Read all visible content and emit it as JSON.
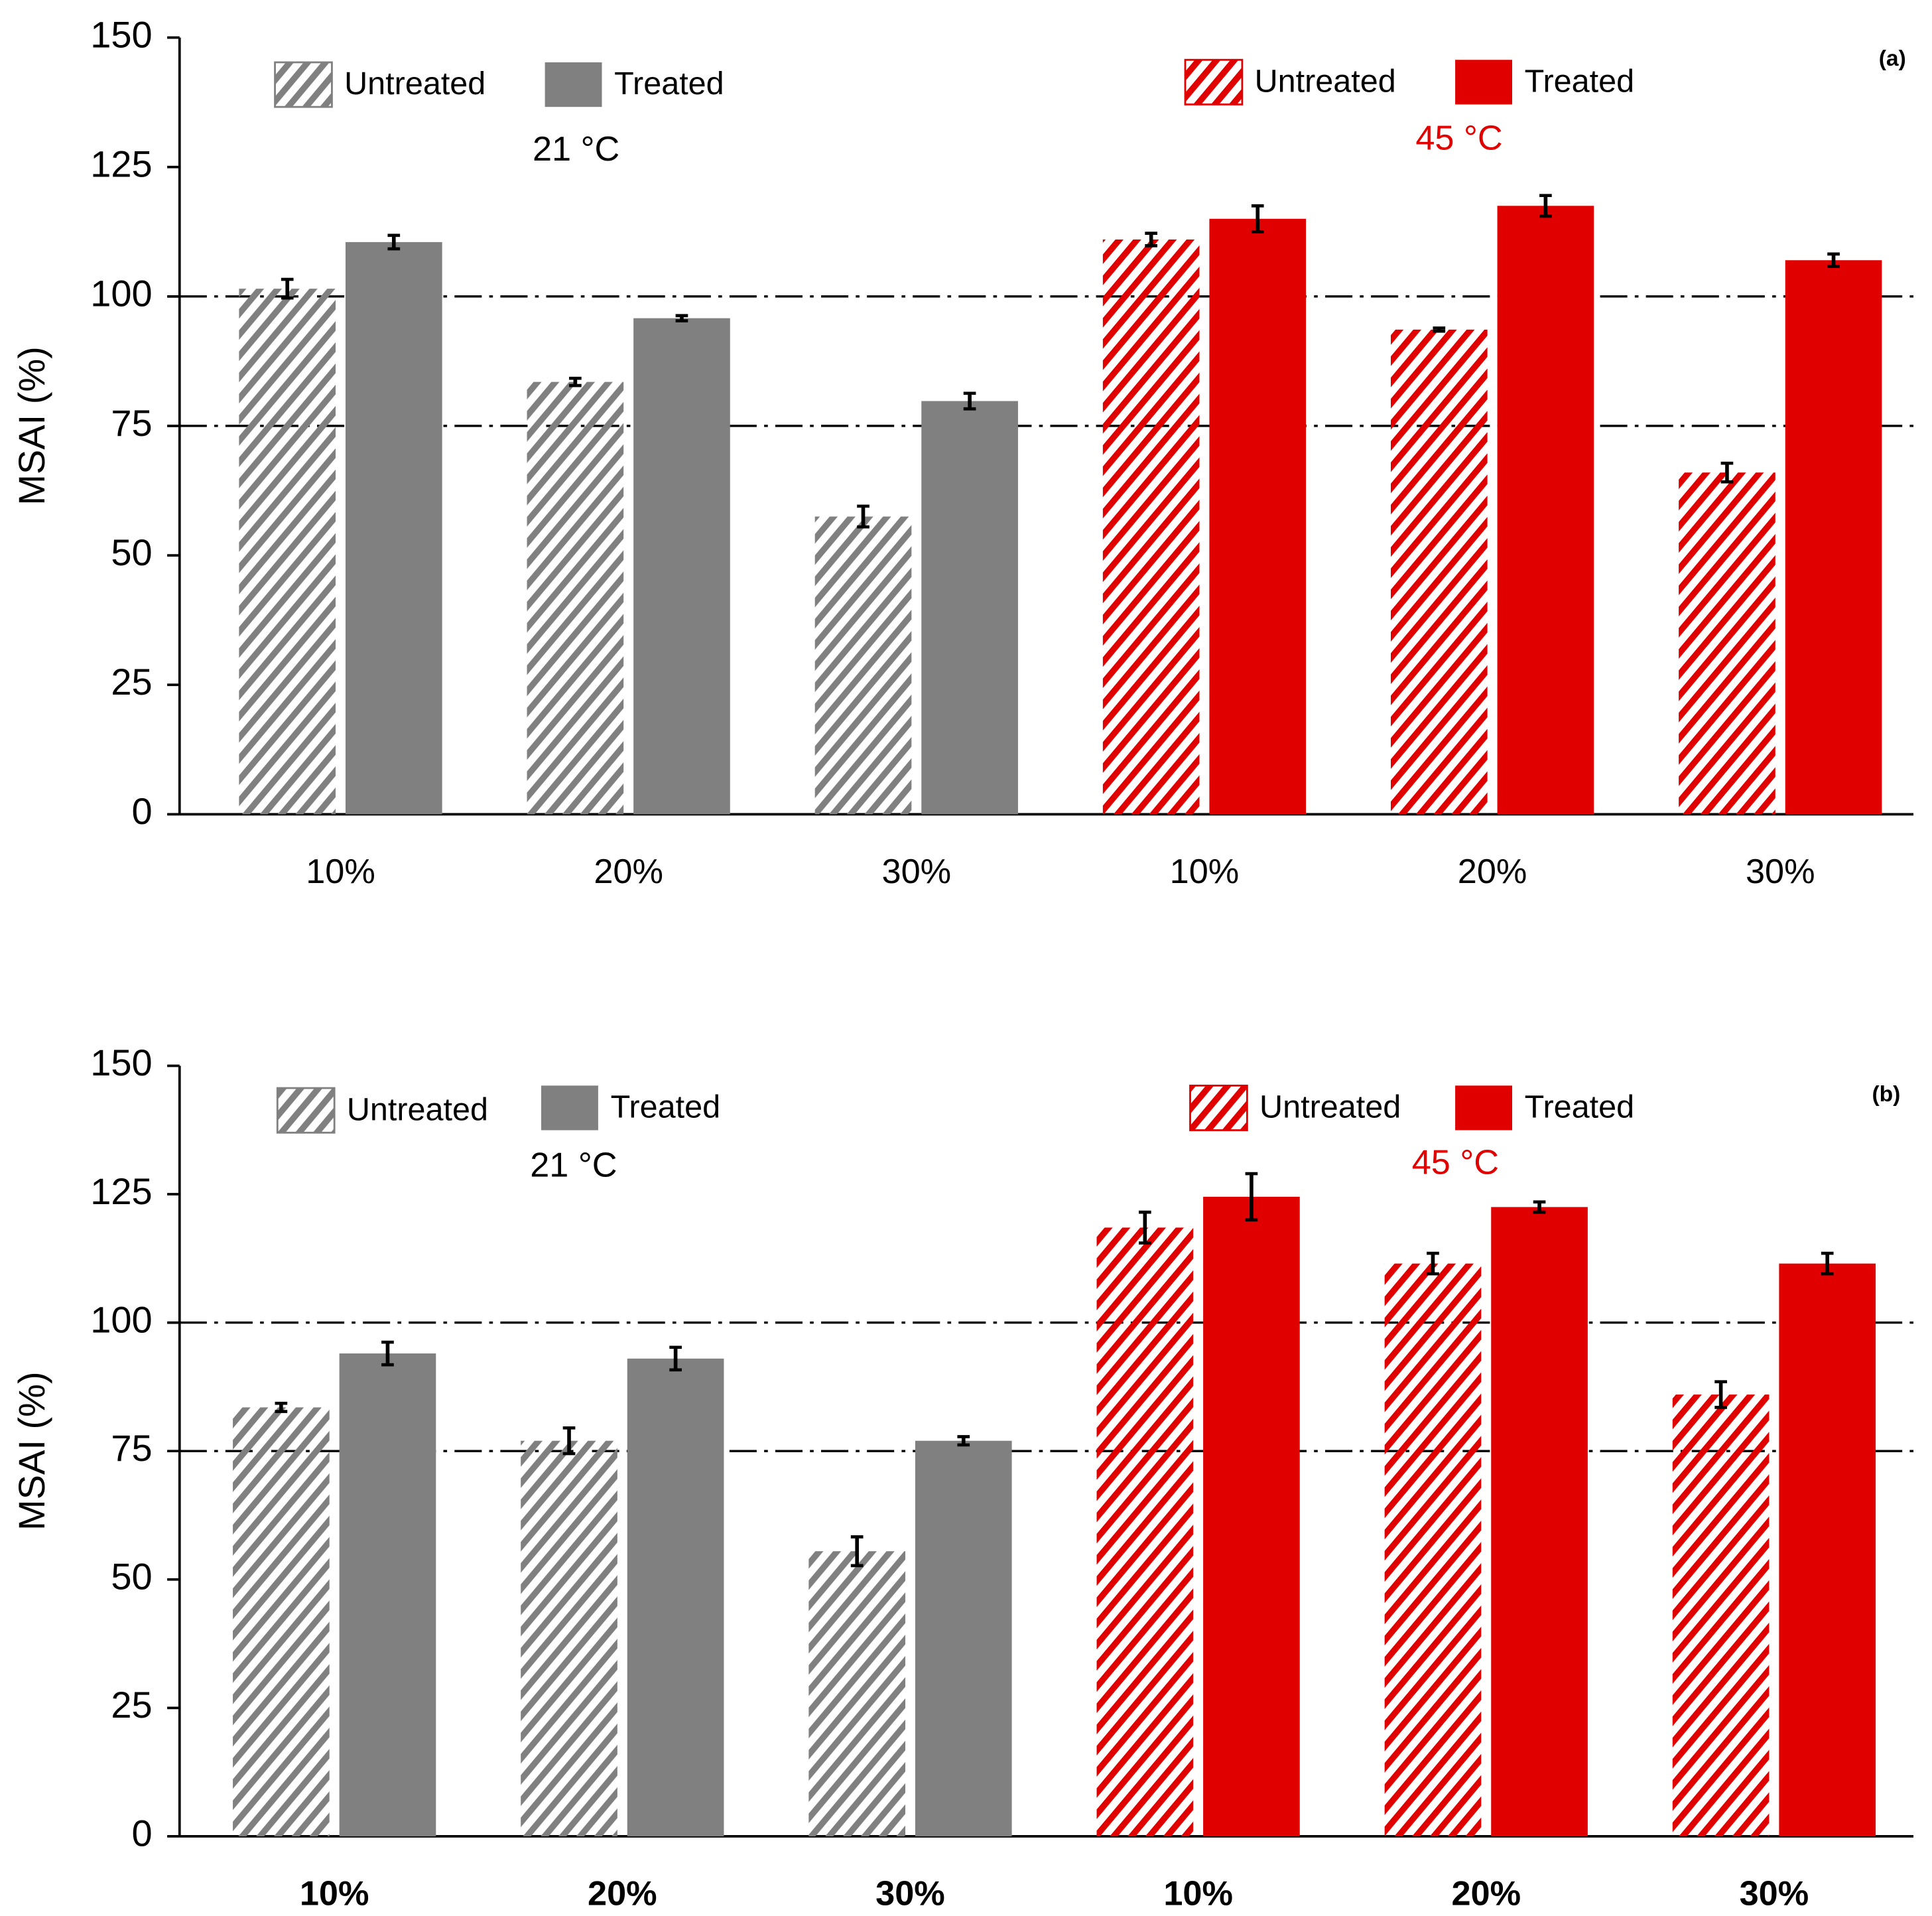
{
  "chart_data": [
    {
      "type": "bar",
      "label": "(a)",
      "ylabel": "MSAI (%)",
      "ylim": [
        0,
        150
      ],
      "yticks": [
        0,
        25,
        50,
        75,
        100,
        125,
        150
      ],
      "reference_lines": [
        100,
        75
      ],
      "groups": [
        {
          "label": "21 °C",
          "label_color": "#000000",
          "categories": [
            "10%",
            "20%",
            "30%"
          ],
          "series": [
            {
              "name": "Untreated",
              "color": "#808080",
              "hatch": true,
              "values": [
                101.5,
                83.5,
                57.5
              ],
              "errors": [
                1.8,
                0.7,
                2
              ]
            },
            {
              "name": "Treated",
              "color": "#808080",
              "hatch": false,
              "values": [
                110.5,
                95.8,
                79.8
              ],
              "errors": [
                1.3,
                0.5,
                1.5
              ]
            }
          ]
        },
        {
          "label": "45 °C",
          "label_color": "#e00000",
          "categories": [
            "10%",
            "20%",
            "30%"
          ],
          "series": [
            {
              "name": "Untreated",
              "color": "#e00000",
              "hatch": true,
              "values": [
                111,
                93.6,
                66
              ],
              "errors": [
                1.2,
                0.3,
                1.8
              ]
            },
            {
              "name": "Treated",
              "color": "#e00000",
              "hatch": false,
              "values": [
                115,
                117.5,
                107
              ],
              "errors": [
                2.5,
                2,
                1.2
              ]
            }
          ]
        }
      ]
    },
    {
      "type": "bar",
      "label": "(b)",
      "ylabel": "MSAI (%)",
      "ylim": [
        0,
        150
      ],
      "yticks": [
        0,
        25,
        50,
        75,
        100,
        125,
        150
      ],
      "reference_lines": [
        100,
        75
      ],
      "groups": [
        {
          "label": "21 °C",
          "label_color": "#000000",
          "categories": [
            "10%",
            "20%",
            "30%"
          ],
          "series": [
            {
              "name": "Untreated",
              "color": "#808080",
              "hatch": true,
              "values": [
                83.5,
                77,
                55.5
              ],
              "errors": [
                0.8,
                2.5,
                2.8
              ]
            },
            {
              "name": "Treated",
              "color": "#808080",
              "hatch": false,
              "values": [
                94,
                93,
                77
              ],
              "errors": [
                2.2,
                2.2,
                0.8
              ]
            }
          ]
        },
        {
          "label": "45 °C",
          "label_color": "#e00000",
          "categories": [
            "10%",
            "20%",
            "30%"
          ],
          "series": [
            {
              "name": "Untreated",
              "color": "#e00000",
              "hatch": true,
              "values": [
                118.5,
                111.5,
                86
              ],
              "errors": [
                3,
                2,
                2.5
              ]
            },
            {
              "name": "Treated",
              "color": "#e00000",
              "hatch": false,
              "values": [
                124.5,
                122.5,
                111.5
              ],
              "errors": [
                4.5,
                1,
                2
              ]
            }
          ]
        }
      ]
    }
  ]
}
